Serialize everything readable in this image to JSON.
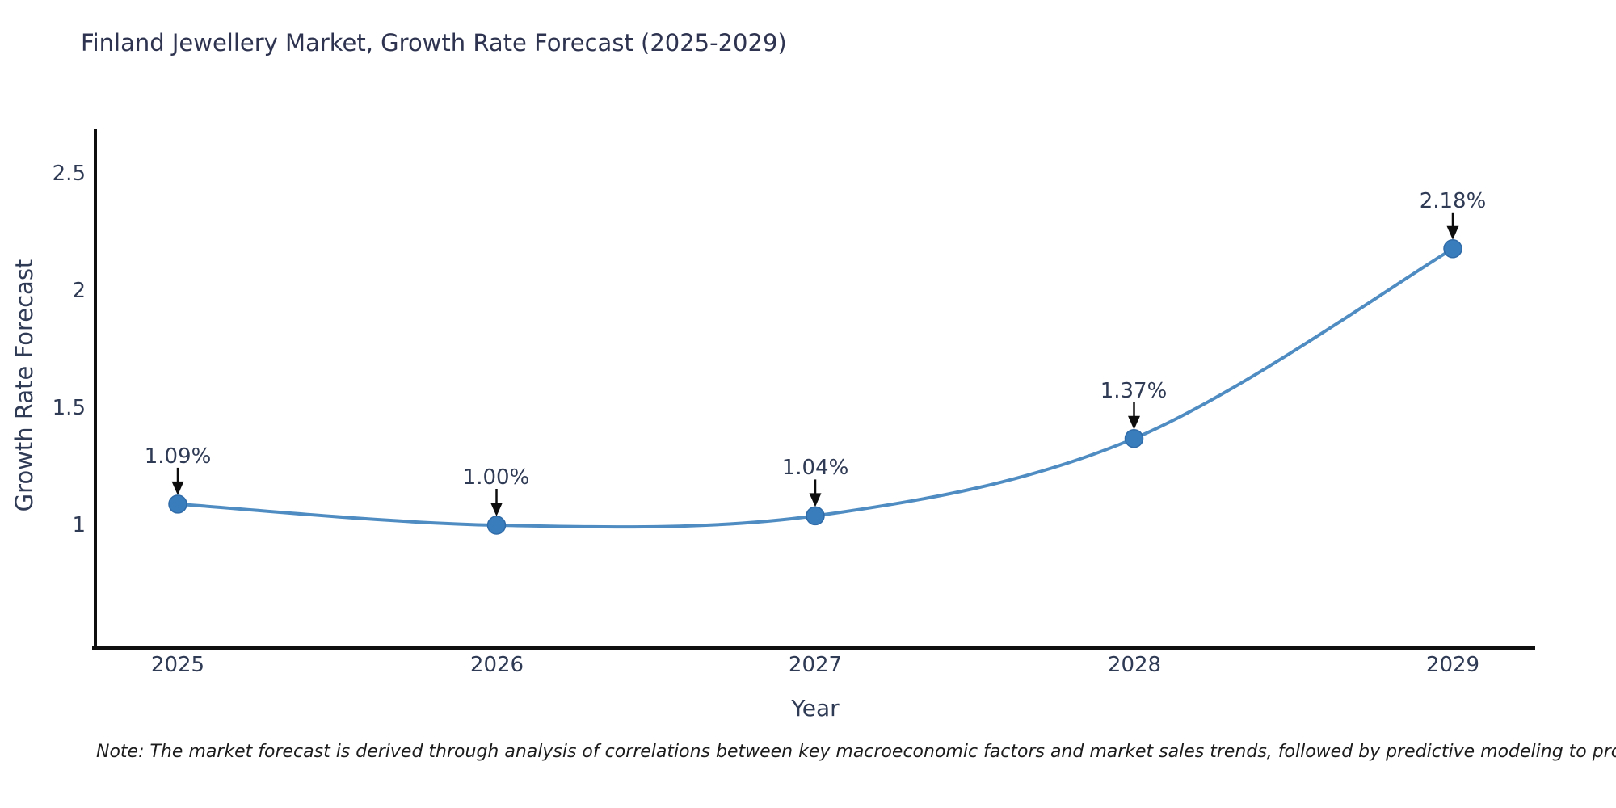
{
  "note": "Note: The market forecast is derived through analysis of correlations between key macroeconomic factors and market sales trends, followed by predictive modeling to project future sales",
  "colors": {
    "line": "#4e8cc2",
    "marker": "#3a7dbd",
    "marker_edge": "#2f6ba8",
    "text": "#2f3a54",
    "spine": "#0f0f0f",
    "arrow": "#0d0d0d",
    "background": "#ffffff"
  },
  "chart_data": {
    "type": "line",
    "title": "Finland Jewellery Market, Growth Rate Forecast (2025-2029)",
    "xlabel": "Year",
    "ylabel": "Growth Rate Forecast",
    "x": [
      2025,
      2026,
      2027,
      2028,
      2029
    ],
    "values": [
      1.09,
      1.0,
      1.04,
      1.37,
      2.18
    ],
    "labels": [
      "1.09%",
      "1.00%",
      "1.04%",
      "1.37%",
      "2.18%"
    ],
    "xticks": [
      "2025",
      "2026",
      "2027",
      "2028",
      "2029"
    ],
    "yticks": [
      "2.5",
      "2",
      "1.5",
      "1"
    ],
    "ytick_values": [
      2.5,
      2.0,
      1.5,
      1.0
    ],
    "ylim": [
      0.48,
      2.69
    ],
    "xlim": [
      2024.74,
      2029.26
    ],
    "grid": false,
    "legend": false,
    "line_shape": "spline",
    "marker": "circle",
    "annotation_arrows": "down"
  }
}
